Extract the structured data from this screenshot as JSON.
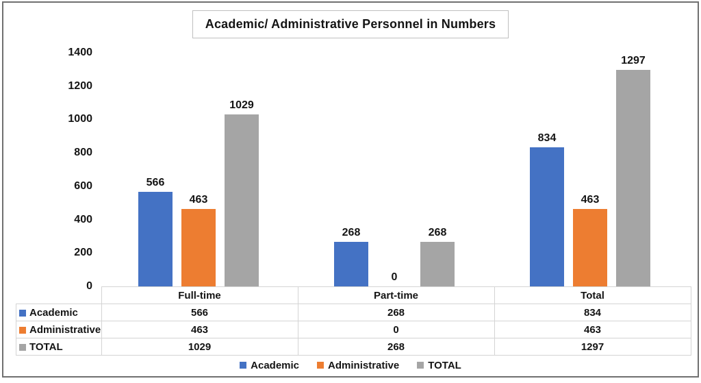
{
  "page": {
    "title": "Academic/ Administrative Personnel in Numbers"
  },
  "chart_data": {
    "type": "bar",
    "title": "Academic/ Administrative Personnel in Numbers",
    "categories": [
      "Full-time",
      "Part-time",
      "Total"
    ],
    "series": [
      {
        "name": "Academic",
        "color": "#4472C4",
        "values": [
          566,
          268,
          834
        ]
      },
      {
        "name": "Administrative",
        "color": "#ED7D31",
        "values": [
          463,
          0,
          463
        ]
      },
      {
        "name": "TOTAL",
        "color": "#A5A5A5",
        "values": [
          1029,
          268,
          1297
        ]
      }
    ],
    "ylim": [
      0,
      1400
    ],
    "yticks": [
      0,
      200,
      400,
      600,
      800,
      1000,
      1200,
      1400
    ],
    "grid": false,
    "data_labels": true,
    "legend_position": "bottom",
    "data_table_shown": true
  },
  "legend": {
    "items": [
      {
        "label": "Academic",
        "color": "#4472C4"
      },
      {
        "label": "Administrative",
        "color": "#ED7D31"
      },
      {
        "label": "TOTAL",
        "color": "#A5A5A5"
      }
    ]
  },
  "colors": {
    "frame_border": "#6f6f6f",
    "title_box_border": "#bfbfbf",
    "table_border": "#d4d4d4",
    "text": "#141414",
    "background": "#ffffff"
  }
}
